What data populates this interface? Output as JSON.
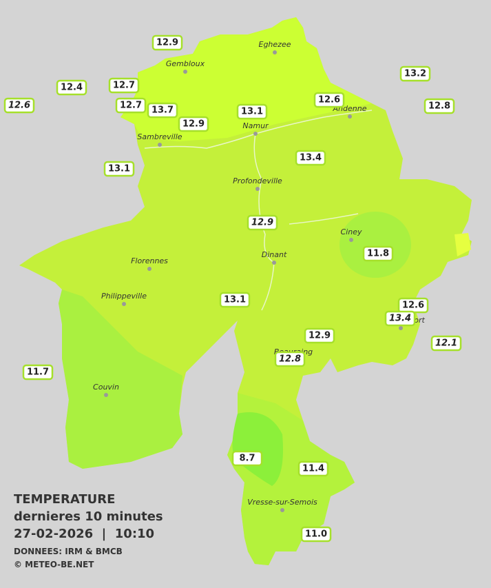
{
  "header": {
    "title": "TEMPERATURE",
    "subtitle": "dernieres 10 minutes",
    "datetime": "27-02-2026  |  10:10",
    "source": "DONNEES: IRM & BMCB",
    "copyright": "© METEO-BE.NET"
  },
  "towns": [
    "Eghezee",
    "Gembloux",
    "Andenne",
    "Namur",
    "Sambreville",
    "Profondeville",
    "Ciney",
    "Dinant",
    "Florennes",
    "Philippeville",
    "Couvin",
    "Vresse-sur-Semois",
    "Rochefort",
    "Beauraing"
  ],
  "stations": [
    {
      "value": "12.9",
      "italic": false
    },
    {
      "value": "12.4",
      "italic": false
    },
    {
      "value": "12.7",
      "italic": false
    },
    {
      "value": "12.6",
      "italic": true
    },
    {
      "value": "12.7",
      "italic": false
    },
    {
      "value": "13.7",
      "italic": false
    },
    {
      "value": "12.9",
      "italic": false
    },
    {
      "value": "13.1",
      "italic": false
    },
    {
      "value": "12.6",
      "italic": false
    },
    {
      "value": "13.2",
      "italic": false
    },
    {
      "value": "12.8",
      "italic": false
    },
    {
      "value": "13.1",
      "italic": false
    },
    {
      "value": "13.4",
      "italic": false
    },
    {
      "value": "12.9",
      "italic": true
    },
    {
      "value": "11.8",
      "italic": false
    },
    {
      "value": "13.1",
      "italic": false
    },
    {
      "value": "12.6",
      "italic": false
    },
    {
      "value": "13.4",
      "italic": true
    },
    {
      "value": "12.9",
      "italic": false
    },
    {
      "value": "12.8",
      "italic": true
    },
    {
      "value": "12.1",
      "italic": true
    },
    {
      "value": "11.7",
      "italic": false
    },
    {
      "value": "8.7",
      "italic": false
    },
    {
      "value": "11.4",
      "italic": false
    },
    {
      "value": "11.0",
      "italic": false
    }
  ]
}
